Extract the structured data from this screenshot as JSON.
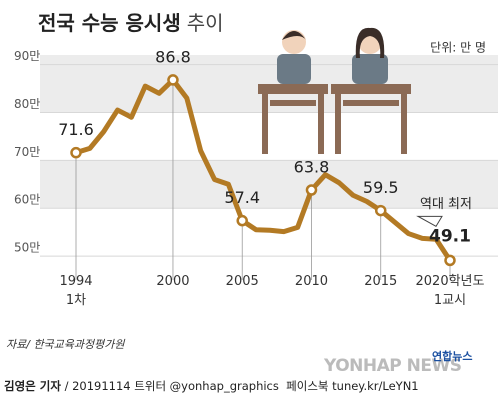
{
  "chart_data": {
    "type": "line",
    "title": "전국 수능 응시생",
    "title_suffix": "추이",
    "unit": "단위: 만 명",
    "categories": [
      "1994\n1차",
      null,
      null,
      null,
      null,
      null,
      null,
      "2000",
      null,
      null,
      null,
      null,
      "2005",
      null,
      null,
      null,
      null,
      "2010",
      null,
      null,
      null,
      null,
      "2015",
      null,
      null,
      null,
      null,
      "2020학년도\n1교시"
    ],
    "series": [
      {
        "name": "응시생",
        "color": "#b37a24",
        "values": [
          71.6,
          72.5,
          76.0,
          80.5,
          79.0,
          85.5,
          84.0,
          86.8,
          83.0,
          72.0,
          66.0,
          65.0,
          57.4,
          55.5,
          55.4,
          55.1,
          56.0,
          63.8,
          67.0,
          65.3,
          62.7,
          61.4,
          59.5,
          57.1,
          54.7,
          53.7,
          53.5,
          49.1
        ],
        "value_labels": [
          "71.6",
          null,
          null,
          null,
          null,
          null,
          null,
          "86.8",
          null,
          null,
          null,
          null,
          "57.4",
          null,
          null,
          null,
          null,
          "63.8",
          null,
          null,
          null,
          null,
          "59.5",
          null,
          null,
          null,
          null,
          "49.1"
        ]
      }
    ],
    "ylim": [
      45,
      92
    ],
    "yticks": [
      {
        "value": 50,
        "label": "50만"
      },
      {
        "value": 60,
        "label": "60만"
      },
      {
        "value": 70,
        "label": "70만"
      },
      {
        "value": 80,
        "label": "80만"
      },
      {
        "value": 90,
        "label": "90만"
      }
    ],
    "bands": true,
    "annotation": "역대 최저",
    "source": "자료/ 한국교육과정평가원",
    "byline": "김영은 기자",
    "footer": "/ 20191114 트위터 @yonhap_graphics  페이스북 tuney.kr/LeYN1",
    "logo": "YONHAP NEWS",
    "logo_kr": "연합뉴스"
  }
}
